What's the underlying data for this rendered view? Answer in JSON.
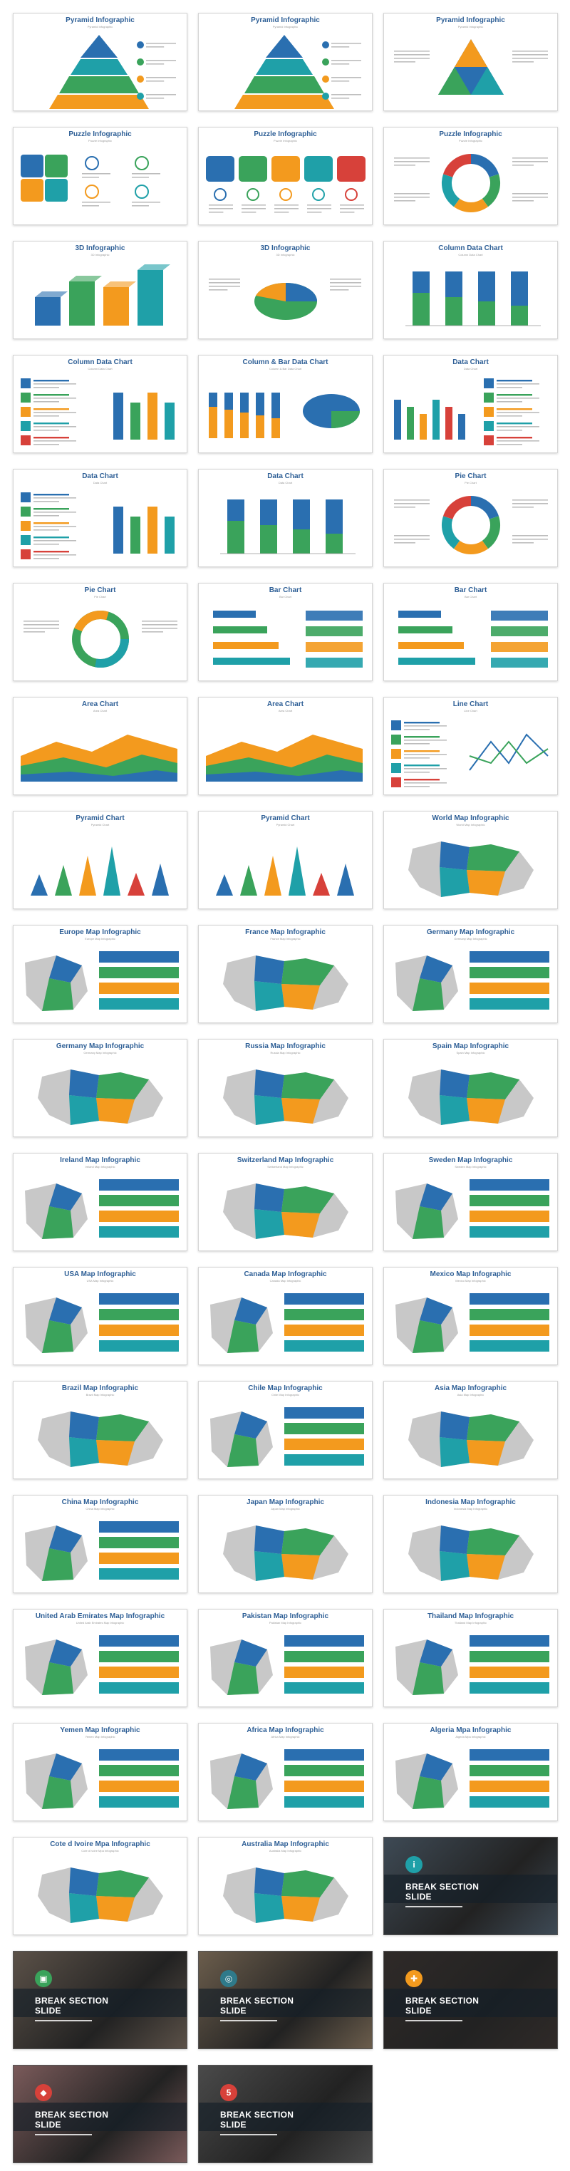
{
  "palette": {
    "blue": "#2a6fb0",
    "green": "#3aa35b",
    "orange": "#f39a1e",
    "teal": "#1fa0a8",
    "red": "#d7413a",
    "gray": "#c8c8c8"
  },
  "slides": [
    {
      "title": "Pyramid Infographic",
      "subtitle": "Pyramid Infographic",
      "thumb": "pyramid"
    },
    {
      "title": "Pyramid Infographic",
      "subtitle": "Pyramid Infographic",
      "thumb": "pyramid"
    },
    {
      "title": "Pyramid Infographic",
      "subtitle": "Pyramid Infographic",
      "thumb": "triangle"
    },
    {
      "title": "Puzzle Infographic",
      "subtitle": "Puzzle Infographic",
      "thumb": "puzzle"
    },
    {
      "title": "Puzzle Infographic",
      "subtitle": "Puzzle Infographic",
      "thumb": "puzzle-row"
    },
    {
      "title": "Puzzle Infographic",
      "subtitle": "Puzzle Infographic",
      "thumb": "ring"
    },
    {
      "title": "3D Infographic",
      "subtitle": "3D Infographic",
      "thumb": "bars3d"
    },
    {
      "title": "3D Infographic",
      "subtitle": "3D Infographic",
      "thumb": "pie3d"
    },
    {
      "title": "Column Data Chart",
      "subtitle": "Column Data Chart",
      "thumb": "columns"
    },
    {
      "title": "Column Data Chart",
      "subtitle": "Column Data Chart",
      "thumb": "list-columns"
    },
    {
      "title": "Column & Bar Data Chart",
      "subtitle": "Column & Bar Data Chart",
      "thumb": "col-pie"
    },
    {
      "title": "Data Chart",
      "subtitle": "Data Chart",
      "thumb": "columns-list"
    },
    {
      "title": "Data Chart",
      "subtitle": "Data Chart",
      "thumb": "list-columns"
    },
    {
      "title": "Data Chart",
      "subtitle": "Data Chart",
      "thumb": "columns"
    },
    {
      "title": "Pie Chart",
      "subtitle": "Pie Chart",
      "thumb": "ring"
    },
    {
      "title": "Pie Chart",
      "subtitle": "Pie Chart",
      "thumb": "donut"
    },
    {
      "title": "Bar Chart",
      "subtitle": "Bar Chart",
      "thumb": "hbars"
    },
    {
      "title": "Bar Chart",
      "subtitle": "Bar Chart",
      "thumb": "hbars"
    },
    {
      "title": "Area Chart",
      "subtitle": "Area Chart",
      "thumb": "area"
    },
    {
      "title": "Area Chart",
      "subtitle": "Area Chart",
      "thumb": "area"
    },
    {
      "title": "Line Chart",
      "subtitle": "Line Chart",
      "thumb": "line"
    },
    {
      "title": "Pyramid Chart",
      "subtitle": "Pyramid Chart",
      "thumb": "spikes"
    },
    {
      "title": "Pyramid Chart",
      "subtitle": "Pyramid Chart",
      "thumb": "spikes"
    },
    {
      "title": "World Map Infographic",
      "subtitle": "World Map Infographic",
      "thumb": "map"
    },
    {
      "title": "Europe Map Infographic",
      "subtitle": "Europe Map Infographic",
      "thumb": "map-list"
    },
    {
      "title": "France Map Infographic",
      "subtitle": "France Map Infographic",
      "thumb": "map"
    },
    {
      "title": "Germany Map Infographic",
      "subtitle": "Germany Map Infographic",
      "thumb": "map-list"
    },
    {
      "title": "Germany Map Infographic",
      "subtitle": "Germany Map Infographic",
      "thumb": "map"
    },
    {
      "title": "Russia Map Infographic",
      "subtitle": "Russia Map Infographic",
      "thumb": "map"
    },
    {
      "title": "Spain Map Infographic",
      "subtitle": "Spain Map Infographic",
      "thumb": "map"
    },
    {
      "title": "Ireland Map Infographic",
      "subtitle": "Ireland Map Infographic",
      "thumb": "map-list"
    },
    {
      "title": "Switzerland Map Infographic",
      "subtitle": "Switzerland Map Infographic",
      "thumb": "map"
    },
    {
      "title": "Sweden Map Infographic",
      "subtitle": "Sweden Map Infographic",
      "thumb": "map-list"
    },
    {
      "title": "USA Map Infographic",
      "subtitle": "USA Map Infographic",
      "thumb": "map-list"
    },
    {
      "title": "Canada Map Infographic",
      "subtitle": "Canada Map Infographic",
      "thumb": "map-list"
    },
    {
      "title": "Mexico Map Infographic",
      "subtitle": "Mexico Map Infographic",
      "thumb": "map-list"
    },
    {
      "title": "Brazil Map Infographic",
      "subtitle": "Brazil Map Infographic",
      "thumb": "map"
    },
    {
      "title": "Chile Map Infographic",
      "subtitle": "Chile Map Infographic",
      "thumb": "map-list"
    },
    {
      "title": "Asia Map Infographic",
      "subtitle": "Asia Map Infographic",
      "thumb": "map"
    },
    {
      "title": "China Map Infographic",
      "subtitle": "China Map Infographic",
      "thumb": "map-list"
    },
    {
      "title": "Japan Map Infographic",
      "subtitle": "Japan Map Infographic",
      "thumb": "map"
    },
    {
      "title": "Indonesia Map Infographic",
      "subtitle": "Indonesia Map Infographic",
      "thumb": "map"
    },
    {
      "title": "United Arab Emirates Map Infographic",
      "subtitle": "United Arab Emirates Map Infographic",
      "thumb": "map-list"
    },
    {
      "title": "Pakistan Map Infographic",
      "subtitle": "Pakistan Map Infographic",
      "thumb": "map-list"
    },
    {
      "title": "Thailand Map Infographic",
      "subtitle": "Thailand Map Infographic",
      "thumb": "map-list"
    },
    {
      "title": "Yemen Map Infographic",
      "subtitle": "Yemen Map Infographic",
      "thumb": "map-list"
    },
    {
      "title": "Africa Map Infographic",
      "subtitle": "Africa Map Infographic",
      "thumb": "map-list"
    },
    {
      "title": "Algeria Mpa Infographic",
      "subtitle": "Algeria Mpa Infographic",
      "thumb": "map-list"
    },
    {
      "title": "Cote d Ivoire Mpa Infographic",
      "subtitle": "Cote d Ivoire Mpa Infographic",
      "thumb": "map"
    },
    {
      "title": "Australia Map Infographic",
      "subtitle": "Australia Map Infographic",
      "thumb": "map"
    }
  ],
  "break_slides": [
    {
      "title": "BREAK SECTION SLIDE",
      "icon": "i",
      "icon_color": "#1fa0a8",
      "photo_tint": "#3e4a55"
    },
    {
      "title": "BREAK SECTION SLIDE",
      "icon": "▣",
      "icon_color": "#3aa35b",
      "photo_tint": "#5b5148"
    },
    {
      "title": "BREAK SECTION SLIDE",
      "icon": "◎",
      "icon_color": "#2f7a8a",
      "photo_tint": "#6b5d4c"
    },
    {
      "title": "BREAK SECTION SLIDE",
      "icon": "✚",
      "icon_color": "#f39a1e",
      "photo_tint": "#2f2a28"
    },
    {
      "title": "BREAK SECTION SLIDE",
      "icon": "◆",
      "icon_color": "#d7413a",
      "photo_tint": "#7a5a5a"
    },
    {
      "title": "BREAK SECTION SLIDE",
      "icon": "5",
      "icon_color": "#d7413a",
      "photo_tint": "#4a4a4a"
    }
  ]
}
